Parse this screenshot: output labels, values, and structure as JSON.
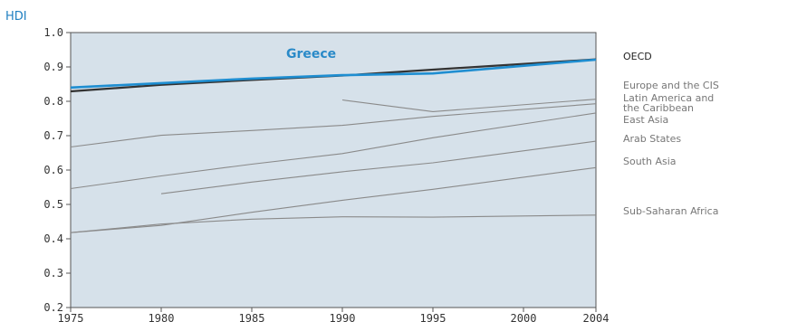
{
  "chart_data": {
    "type": "line",
    "title": "",
    "ylabel": "HDI",
    "xlabel": "",
    "xlim": [
      1975,
      2004
    ],
    "ylim": [
      0.2,
      1.0
    ],
    "x_ticks": [
      1975,
      1980,
      1985,
      1990,
      1995,
      2000,
      2004
    ],
    "y_ticks": [
      "0.2",
      "0.3",
      "0.4",
      "0.5",
      "0.6",
      "0.7",
      "0.8",
      "0.9",
      "1.0"
    ],
    "grid": false,
    "annotation": "Greece",
    "colors": {
      "background": "#d6e1ea",
      "greece": "#1f8ed1",
      "oecd": "#333333",
      "other": "#8a8a8a"
    },
    "series": [
      {
        "name": "OECD",
        "style": "oecd",
        "points": [
          [
            1975,
            0.829
          ],
          [
            1980,
            0.848
          ],
          [
            1985,
            0.862
          ],
          [
            1990,
            0.875
          ],
          [
            1995,
            0.892
          ],
          [
            2004,
            0.922
          ]
        ]
      },
      {
        "name": "Greece",
        "style": "greece",
        "points": [
          [
            1975,
            0.84
          ],
          [
            1980,
            0.853
          ],
          [
            1985,
            0.866
          ],
          [
            1990,
            0.876
          ],
          [
            1995,
            0.881
          ],
          [
            2004,
            0.921
          ]
        ]
      },
      {
        "name": "Europe and the CIS",
        "style": "other",
        "points": [
          [
            1990,
            0.804
          ],
          [
            1995,
            0.77
          ],
          [
            2004,
            0.806
          ]
        ]
      },
      {
        "name": "Latin America and the Caribbean",
        "style": "other",
        "points": [
          [
            1975,
            0.667
          ],
          [
            1980,
            0.701
          ],
          [
            1985,
            0.715
          ],
          [
            1990,
            0.73
          ],
          [
            1995,
            0.756
          ],
          [
            2004,
            0.793
          ]
        ]
      },
      {
        "name": "East Asia",
        "style": "other",
        "points": [
          [
            1975,
            0.546
          ],
          [
            1980,
            0.583
          ],
          [
            1985,
            0.617
          ],
          [
            1990,
            0.648
          ],
          [
            1995,
            0.694
          ],
          [
            2004,
            0.766
          ]
        ]
      },
      {
        "name": "Arab States",
        "style": "other",
        "points": [
          [
            1980,
            0.531
          ],
          [
            1985,
            0.565
          ],
          [
            1990,
            0.595
          ],
          [
            1995,
            0.621
          ],
          [
            2004,
            0.684
          ]
        ]
      },
      {
        "name": "South Asia",
        "style": "other",
        "points": [
          [
            1975,
            0.418
          ],
          [
            1980,
            0.439
          ],
          [
            1985,
            0.477
          ],
          [
            1990,
            0.512
          ],
          [
            1995,
            0.544
          ],
          [
            2004,
            0.607
          ]
        ]
      },
      {
        "name": "Sub-Saharan Africa",
        "style": "other",
        "points": [
          [
            1975,
            0.418
          ],
          [
            1980,
            0.443
          ],
          [
            1985,
            0.457
          ],
          [
            1990,
            0.464
          ],
          [
            1995,
            0.463
          ],
          [
            2004,
            0.469
          ]
        ]
      }
    ],
    "legend": [
      {
        "label": "OECD",
        "style": "oecd"
      },
      {
        "label": "Europe and the CIS",
        "style": "other"
      },
      {
        "label": "Latin America and the Caribbean",
        "line1": "Latin America and",
        "line2": "the Caribbean",
        "style": "other"
      },
      {
        "label": "East Asia",
        "style": "other"
      },
      {
        "label": "Arab States",
        "style": "other"
      },
      {
        "label": "South Asia",
        "style": "other"
      },
      {
        "label": "Sub-Saharan Africa",
        "style": "other"
      }
    ]
  }
}
